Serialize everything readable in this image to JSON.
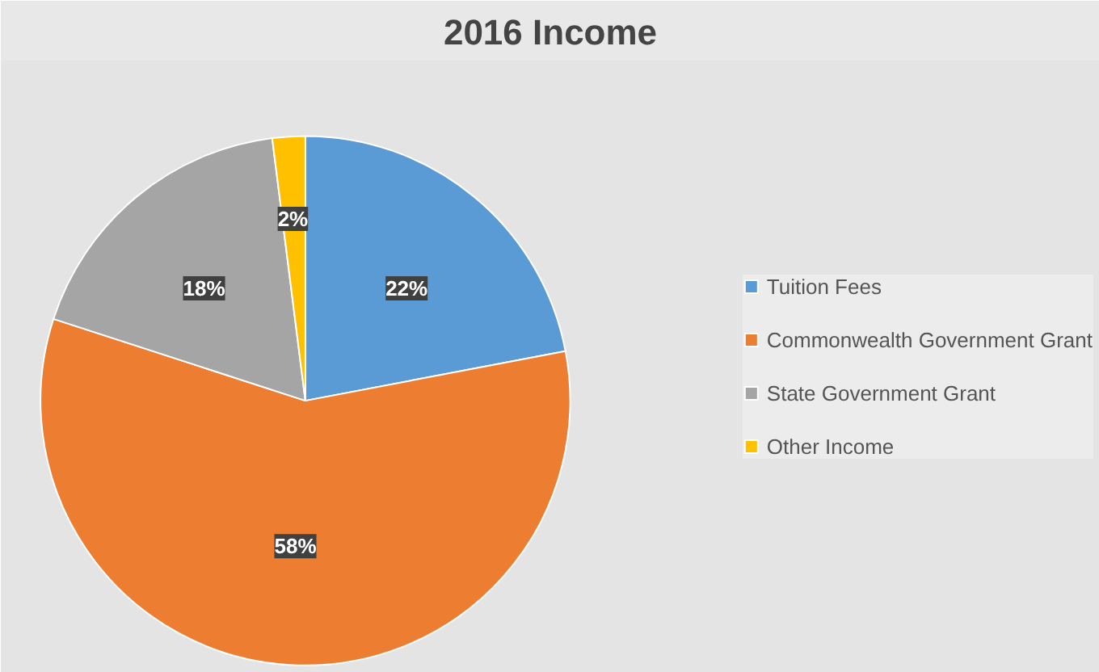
{
  "chart_data": {
    "type": "pie",
    "title": "2016 Income",
    "categories": [
      "Tuition Fees",
      "Commonwealth Government Grant",
      "State Government Grant",
      "Other Income"
    ],
    "values": [
      22,
      58,
      18,
      2
    ],
    "colors": [
      "#5b9bd5",
      "#ed7d31",
      "#a5a5a5",
      "#ffc000"
    ],
    "value_labels": [
      "22%",
      "58%",
      "18%",
      "2%"
    ],
    "legend": "right"
  }
}
